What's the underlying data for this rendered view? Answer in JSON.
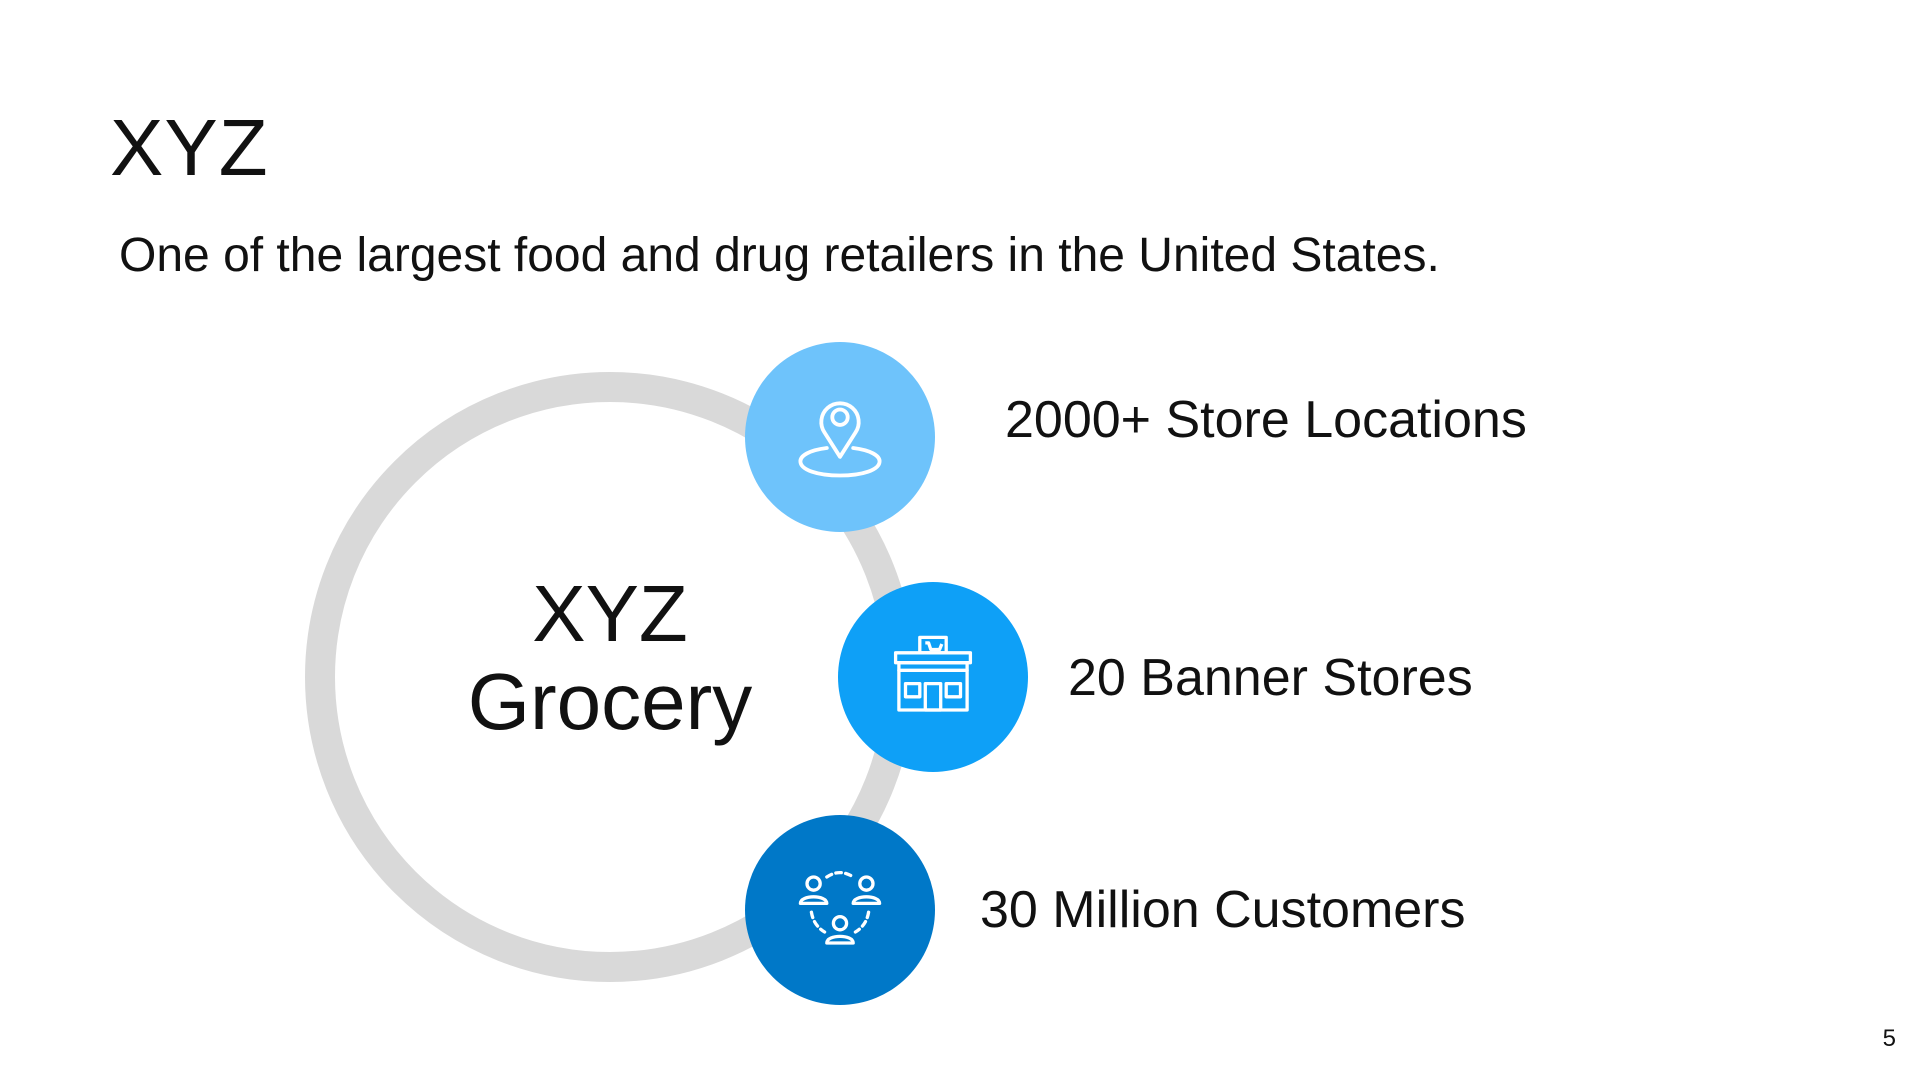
{
  "slide": {
    "title": "XYZ",
    "subtitle": "One of the largest food and drug retailers in the United States.",
    "center": {
      "line1": "XYZ",
      "line2": "Grocery"
    },
    "stats": [
      {
        "label": "2000+ Store Locations",
        "icon": "location-pin-icon",
        "color": "#6ec3fb"
      },
      {
        "label": "20 Banner Stores",
        "icon": "storefront-icon",
        "color": "#0ea0f7"
      },
      {
        "label": "30 Million Customers",
        "icon": "customers-network-icon",
        "color": "#0078c8"
      }
    ],
    "page_number": "5",
    "ring_color": "#d9d9d9"
  }
}
